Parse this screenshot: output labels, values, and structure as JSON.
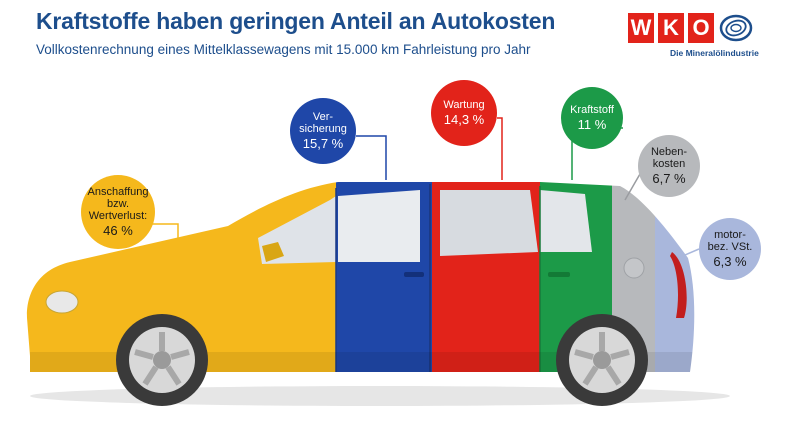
{
  "header": {
    "title": "Kraftstoffe haben geringen Anteil an Autokosten",
    "subtitle": "Vollkostenrechnung eines Mittelklassewagens mit 15.000 km Fahrleistung pro Jahr"
  },
  "logo": {
    "letters": [
      "W",
      "K",
      "O"
    ],
    "tagline": "Die Mineralölindustrie",
    "brand_red": "#e2231a",
    "brand_blue": "#1d4e8c"
  },
  "chart_data": {
    "type": "pie",
    "title": "Kraftstoffe haben geringen Anteil an Autokosten",
    "subtitle": "Vollkostenrechnung eines Mittelklassewagens mit 15.000 km Fahrleistung pro Jahr",
    "unit": "%",
    "categories": [
      "Anschaffung bzw. Wertverlust",
      "Versicherung",
      "Wartung",
      "Kraftstoff",
      "Nebenkosten",
      "motorbez. VSt."
    ],
    "values": [
      46,
      15.7,
      14.3,
      11,
      6.7,
      6.3
    ],
    "colors": [
      "#f5b81c",
      "#1f47a8",
      "#e2231a",
      "#1c9a48",
      "#b7b9bc",
      "#a9b7dc"
    ],
    "bubbles": [
      {
        "label": "Anschaffung\nbzw.\nWertverlust:",
        "value_text": "46 %",
        "text_color": "#1a1a1a"
      },
      {
        "label": "Ver-\nsicherung",
        "value_text": "15,7 %",
        "text_color": "#ffffff"
      },
      {
        "label": "Wartung",
        "value_text": "14,3 %",
        "text_color": "#ffffff"
      },
      {
        "label": "Kraftstoff",
        "value_text": "11 %",
        "text_color": "#ffffff"
      },
      {
        "label": "Neben-\nkosten",
        "value_text": "6,7 %",
        "text_color": "#1a1a1a"
      },
      {
        "label": "motor-\nbez. VSt.",
        "value_text": "6,3 %",
        "text_color": "#1a1a1a"
      }
    ]
  }
}
